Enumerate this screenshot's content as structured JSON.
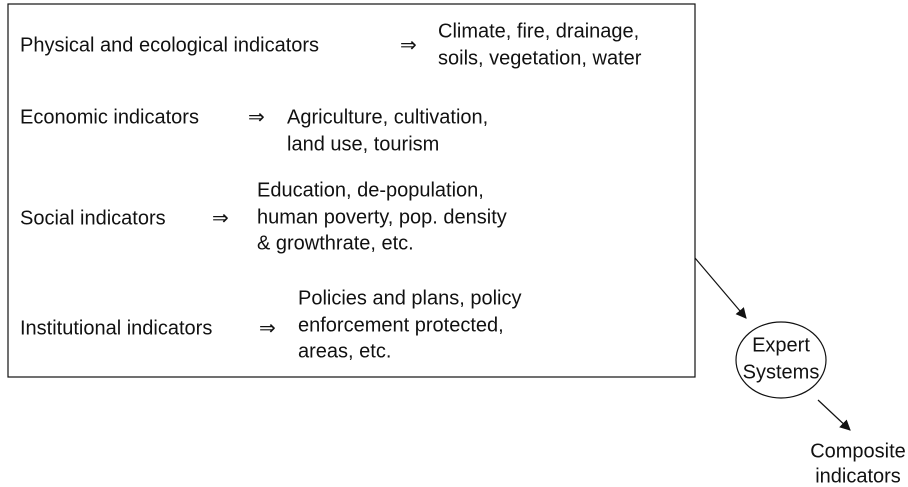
{
  "arrow": "⇒",
  "indicators": [
    {
      "label": "Physical and ecological indicators",
      "details": [
        "Climate, fire, drainage,",
        "soils, vegetation, water"
      ]
    },
    {
      "label": "Economic indicators",
      "details": [
        "Agriculture, cultivation,",
        "land use, tourism"
      ]
    },
    {
      "label": "Social indicators",
      "details": [
        "Education, de-population,",
        "human poverty, pop. density",
        "& growthrate, etc."
      ]
    },
    {
      "label": "Institutional indicators",
      "details": [
        "Policies and plans, policy",
        "enforcement protected,",
        "areas, etc."
      ]
    }
  ],
  "node": {
    "lines": [
      "Expert",
      "Systems"
    ]
  },
  "output": {
    "lines": [
      "Composite",
      "indicators"
    ]
  }
}
